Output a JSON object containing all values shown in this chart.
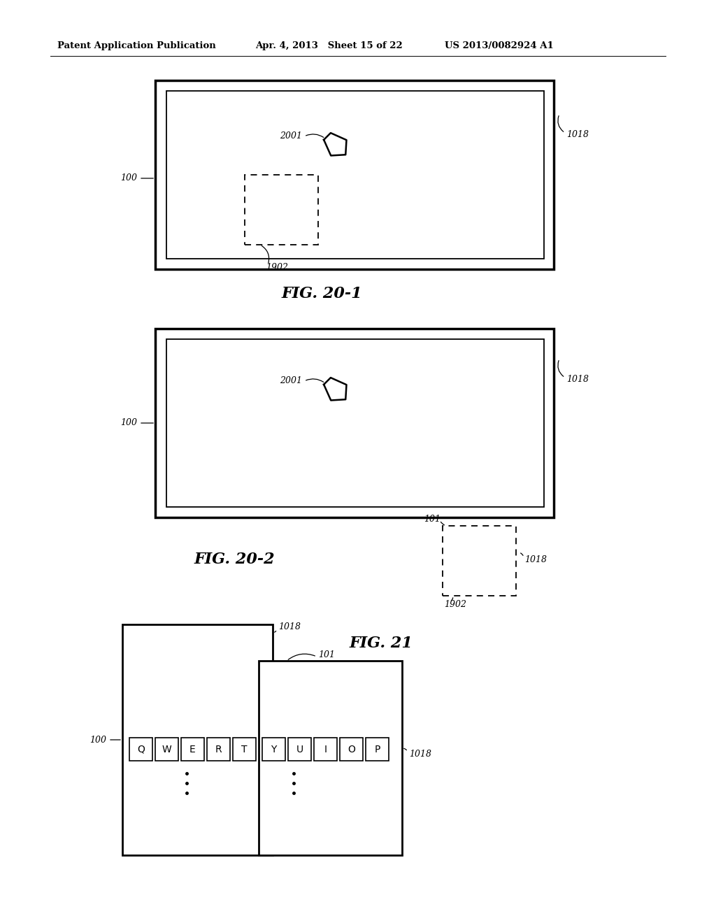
{
  "header_left": "Patent Application Publication",
  "header_mid": "Apr. 4, 2013   Sheet 15 of 22",
  "header_right": "US 2013/0082924 A1",
  "fig1_label": "FIG. 20-1",
  "fig2_label": "FIG. 20-2",
  "fig3_label": "FIG. 21",
  "label_100": "100",
  "label_1018a": "1018",
  "label_1018b": "1018",
  "label_1018c": "1018",
  "label_1018d": "1018",
  "label_2001": "2001",
  "label_1902a": "1902",
  "label_1902b": "1902",
  "label_101a": "101",
  "label_101b": "101",
  "keys_left": [
    "Q",
    "W",
    "E",
    "R",
    "T"
  ],
  "keys_right": [
    "Y",
    "U",
    "I",
    "O",
    "P"
  ],
  "bg_color": "#ffffff",
  "line_color": "#000000"
}
